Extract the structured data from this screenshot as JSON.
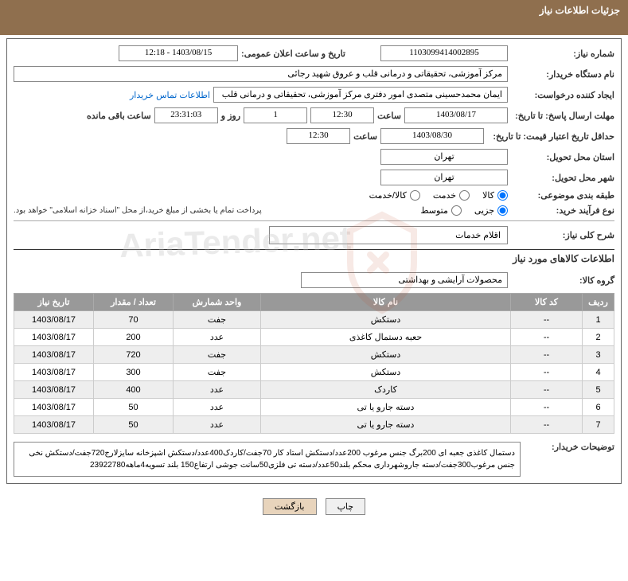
{
  "header": {
    "title": "جزئیات اطلاعات نیاز"
  },
  "fields": {
    "need_number_label": "شماره نیاز:",
    "need_number": "1103099414002895",
    "announce_label": "تاریخ و ساعت اعلان عمومی:",
    "announce_value": "1403/08/15 - 12:18",
    "buyer_org_label": "نام دستگاه خریدار:",
    "buyer_org": "مرکز آموزشی، تحقیقاتی و درمانی قلب و عروق شهید رجائی",
    "requester_label": "ایجاد کننده درخواست:",
    "requester": "ایمان محمدحسینی متصدی امور دفتری مرکز آموزشی، تحقیقاتی و درمانی قلب",
    "contact_link": "اطلاعات تماس خریدار",
    "deadline_label": "مهلت ارسال پاسخ: تا تاریخ:",
    "deadline_date": "1403/08/17",
    "time_label": "ساعت",
    "deadline_time": "12:30",
    "days_count": "1",
    "days_label": "روز و",
    "time_remaining": "23:31:03",
    "remaining_label": "ساعت باقی مانده",
    "validity_label": "حداقل تاریخ اعتبار قیمت: تا تاریخ:",
    "validity_date": "1403/08/30",
    "validity_time": "12:30",
    "province_label": "استان محل تحویل:",
    "province": "تهران",
    "city_label": "شهر محل تحویل:",
    "city": "تهران",
    "category_label": "طبقه بندی موضوعی:",
    "cat_goods": "کالا",
    "cat_service": "خدمت",
    "cat_both": "کالا/خدمت",
    "process_label": "نوع فرآیند خرید:",
    "proc_partial": "جزیی",
    "proc_medium": "متوسط",
    "payment_note": "پرداخت تمام یا بخشی از مبلغ خرید،از محل \"اسناد خزانه اسلامی\" خواهد بود.",
    "overview_label": "شرح کلی نیاز:",
    "overview": "اقلام خدمات",
    "section_title": "اطلاعات کالاهای مورد نیاز",
    "group_label": "گروه کالا:",
    "group": "محصولات آرایشی و بهداشتی",
    "buyer_notes_label": "توضیحات خریدار:",
    "buyer_notes": "دستمال کاغذی جعبه ای 200برگ جنس مرغوب 200عدد/دستکش استاد کار 70جفت/کاردک400عدد/دستکش اشپزخانه سایزلارج720جفت/دستکش نخی جنس مرغوب300جفت/دسته جاروشهرداری محکم بلند50عدد/دسته تی فلزی50سانت جوشی ارتفاع150 بلند تسویه4ماهه23922780"
  },
  "table": {
    "headers": [
      "ردیف",
      "کد کالا",
      "نام کالا",
      "واحد شمارش",
      "تعداد / مقدار",
      "تاریخ نیاز"
    ],
    "rows": [
      [
        "1",
        "--",
        "دستکش",
        "جفت",
        "70",
        "1403/08/17"
      ],
      [
        "2",
        "--",
        "حعبه دستمال کاغذی",
        "عدد",
        "200",
        "1403/08/17"
      ],
      [
        "3",
        "--",
        "دستکش",
        "جفت",
        "720",
        "1403/08/17"
      ],
      [
        "4",
        "--",
        "دستکش",
        "جفت",
        "300",
        "1403/08/17"
      ],
      [
        "5",
        "--",
        "کاردک",
        "عدد",
        "400",
        "1403/08/17"
      ],
      [
        "6",
        "--",
        "دسته جارو یا تی",
        "عدد",
        "50",
        "1403/08/17"
      ],
      [
        "7",
        "--",
        "دسته جارو یا تی",
        "عدد",
        "50",
        "1403/08/17"
      ]
    ]
  },
  "buttons": {
    "print": "چاپ",
    "back": "بازگشت"
  },
  "colors": {
    "header_bg": "#8f6f4e",
    "th_bg": "#999999",
    "row_alt": "#eeeeee",
    "link": "#0066cc",
    "border": "#888888"
  }
}
